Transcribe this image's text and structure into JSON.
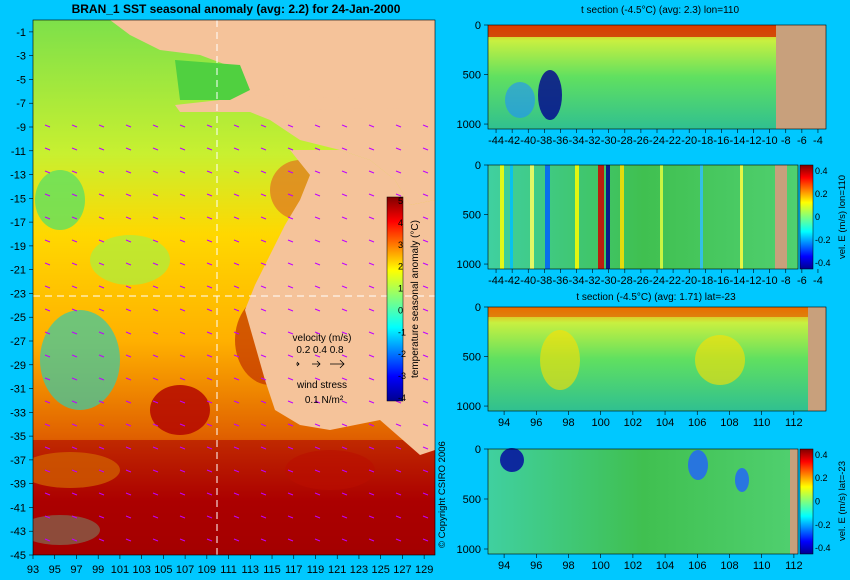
{
  "map_panel": {
    "title": "BRAN_1  SST seasonal anomaly  (avg: 2.2)  for 24-Jan-2000",
    "lat_ticks": [
      "-1",
      "-3",
      "-5",
      "-7",
      "-9",
      "-11",
      "-13",
      "-15",
      "-17",
      "-19",
      "-21",
      "-23",
      "-25",
      "-27",
      "-29",
      "-31",
      "-33",
      "-35",
      "-37",
      "-39",
      "-41",
      "-43",
      "-45"
    ],
    "lon_ticks": [
      "93",
      "95",
      "97",
      "99",
      "101",
      "103",
      "105",
      "107",
      "109",
      "111",
      "113",
      "115",
      "117",
      "119",
      "121",
      "123",
      "125",
      "127",
      "129"
    ],
    "colorbar_label": "temperature seasonal anomaly (°C)",
    "colorbar_ticks": [
      "5",
      "4",
      "3",
      "2",
      "1",
      "0",
      "-1",
      "-2",
      "-3",
      "-4"
    ],
    "velocity_legend": {
      "title": "velocity (m/s)",
      "values": "0.2 0.4 0.8"
    },
    "wind_legend": {
      "title": "wind stress",
      "value": "0.1 N/m²"
    },
    "copyright": "© Copyright CSIRO 2006"
  },
  "panel1": {
    "title": "t section (-4.5°C) (avg: 2.3) lon=110",
    "y_ticks": [
      "0",
      "500",
      "1000"
    ],
    "x_ticks": [
      "-44",
      "-42",
      "-40",
      "-38",
      "-36",
      "-34",
      "-32",
      "-30",
      "-28",
      "-26",
      "-24",
      "-22",
      "-20",
      "-18",
      "-16",
      "-14",
      "-12",
      "-10",
      "-8",
      "-6",
      "-4"
    ]
  },
  "panel2": {
    "y_ticks": [
      "0",
      "500",
      "1000"
    ],
    "x_ticks": [
      "-44",
      "-42",
      "-40",
      "-38",
      "-36",
      "-34",
      "-32",
      "-30",
      "-28",
      "-26",
      "-24",
      "-22",
      "-20",
      "-18",
      "-16",
      "-14",
      "-12",
      "-10",
      "-8",
      "-6",
      "-4"
    ],
    "cbar_label": "vel. E (m/s) lon=110",
    "cbar_ticks": [
      "0.4",
      "0.2",
      "0",
      "-0.2",
      "-0.4"
    ]
  },
  "panel3": {
    "title": "t section (-4.5°C) (avg: 1.71) lat=-23",
    "y_ticks": [
      "0",
      "500",
      "1000"
    ],
    "x_ticks": [
      "94",
      "96",
      "98",
      "100",
      "102",
      "104",
      "106",
      "108",
      "110",
      "112"
    ]
  },
  "panel4": {
    "y_ticks": [
      "0",
      "500",
      "1000"
    ],
    "x_ticks": [
      "94",
      "96",
      "98",
      "100",
      "102",
      "104",
      "106",
      "108",
      "110",
      "112"
    ],
    "cbar_label": "vel. E (m/s) lat=-23",
    "cbar_ticks": [
      "0.4",
      "0.2",
      "0",
      "-0.2",
      "-0.4"
    ]
  },
  "chart_data": [
    {
      "type": "heatmap",
      "title": "BRAN_1  SST seasonal anomaly  (avg: 2.2)  for 24-Jan-2000",
      "xlabel": "",
      "ylabel": "",
      "xlim": [
        93,
        130
      ],
      "ylim": [
        -45,
        0
      ],
      "value_range": [
        -4,
        5
      ],
      "colorbar_label": "temperature seasonal anomaly (°C)",
      "section_lines": {
        "lon": 110,
        "lat": -23
      }
    },
    {
      "type": "heatmap",
      "title": "t section (-4.5°C) (avg: 2.3) lon=110",
      "xlim": [
        -45,
        -3
      ],
      "ylim": [
        1050,
        0
      ]
    },
    {
      "type": "heatmap",
      "title": "",
      "xlim": [
        -45,
        -3
      ],
      "ylim": [
        1050,
        0
      ],
      "value_range": [
        -0.4,
        0.4
      ],
      "colorbar_label": "vel. E (m/s) lon=110"
    },
    {
      "type": "heatmap",
      "title": "t section (-4.5°C) (avg: 1.71) lat=-23",
      "xlim": [
        93,
        114
      ],
      "ylim": [
        1050,
        0
      ]
    },
    {
      "type": "heatmap",
      "title": "",
      "xlim": [
        93,
        113
      ],
      "ylim": [
        1050,
        0
      ],
      "value_range": [
        -0.4,
        0.4
      ],
      "colorbar_label": "vel. E (m/s) lat=-23"
    }
  ],
  "colors": {
    "background": "#00c8ff",
    "land": "#f5c39a",
    "land_section": "#c8a07c"
  }
}
